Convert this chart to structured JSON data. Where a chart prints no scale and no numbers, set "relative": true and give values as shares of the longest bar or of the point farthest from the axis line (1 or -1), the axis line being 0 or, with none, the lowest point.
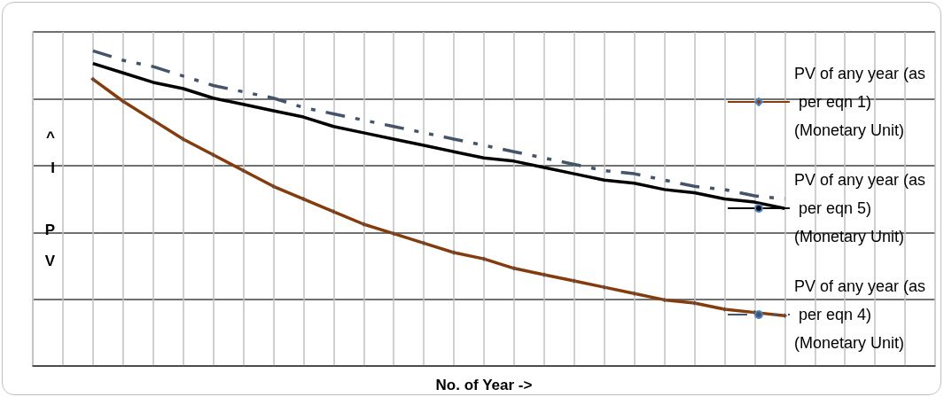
{
  "chart_data": {
    "type": "line",
    "relative": true,
    "xlabel": "No. of Year ->",
    "ylabel": "^\nI\n\nP\nV",
    "categories": [
      null,
      null,
      null,
      null,
      null,
      null,
      null,
      null,
      null,
      null,
      null,
      null,
      null,
      null,
      null,
      null,
      null,
      null,
      null,
      null,
      null,
      null,
      null,
      null,
      null,
      null,
      null,
      null,
      null,
      null,
      null
    ],
    "series": [
      {
        "name": "PV of any year (as per eqn 1) (Monetary Unit)",
        "color": "#843c0c",
        "marker": "diamond",
        "line_style": "solid",
        "values": [
          null,
          null,
          0.91,
          0.84,
          0.78,
          0.72,
          0.67,
          0.62,
          0.57,
          0.53,
          0.49,
          0.45,
          0.42,
          0.39,
          0.36,
          0.34,
          0.31,
          0.29,
          0.27,
          0.25,
          0.23,
          0.21,
          0.2,
          0.18,
          0.17,
          0.16,
          null,
          null,
          null,
          null,
          null
        ]
      },
      {
        "name": "PV of any year (as per eqn 5) (Monetary Unit)",
        "color": "#000000",
        "marker": "none",
        "line_style": "solid",
        "values": [
          null,
          null,
          0.96,
          0.93,
          0.9,
          0.88,
          0.85,
          0.83,
          0.81,
          0.79,
          0.76,
          0.74,
          0.72,
          0.7,
          0.68,
          0.66,
          0.65,
          0.63,
          0.61,
          0.59,
          0.58,
          0.56,
          0.55,
          0.53,
          0.52,
          0.5,
          null,
          null,
          null,
          null,
          null
        ]
      },
      {
        "name": "PV of any year (as per eqn 4) (Monetary Unit)",
        "color": "#44546a",
        "marker": "none",
        "line_style": "dashed",
        "values": [
          null,
          null,
          1.0,
          0.97,
          0.95,
          0.92,
          0.89,
          0.87,
          0.85,
          0.82,
          0.8,
          0.78,
          0.76,
          0.74,
          0.72,
          0.7,
          0.68,
          0.66,
          0.64,
          0.62,
          0.61,
          0.59,
          0.57,
          0.56,
          0.54,
          0.53,
          null,
          null,
          null,
          null,
          null
        ]
      }
    ],
    "grid": true,
    "legend": "right"
  }
}
